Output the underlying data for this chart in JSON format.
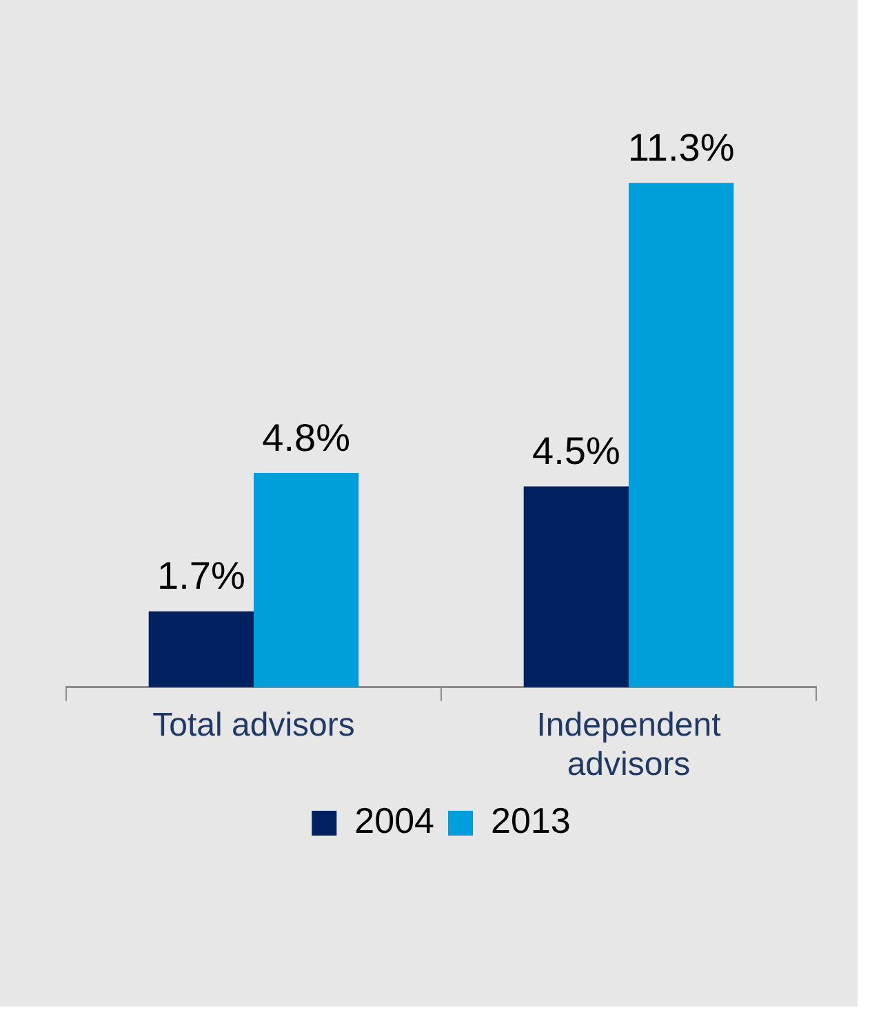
{
  "chart_data": {
    "type": "bar",
    "categories": [
      "Total advisors",
      "Independent advisors"
    ],
    "series": [
      {
        "name": "2004",
        "color": "#002060",
        "values": [
          1.7,
          4.5
        ],
        "value_labels": [
          "1.7%",
          "4.5%"
        ]
      },
      {
        "name": "2013",
        "color": "#009fdb",
        "values": [
          4.8,
          11.3
        ],
        "value_labels": [
          "4.8%",
          "11.3%"
        ]
      }
    ],
    "legend": "bottom",
    "grid": false
  }
}
